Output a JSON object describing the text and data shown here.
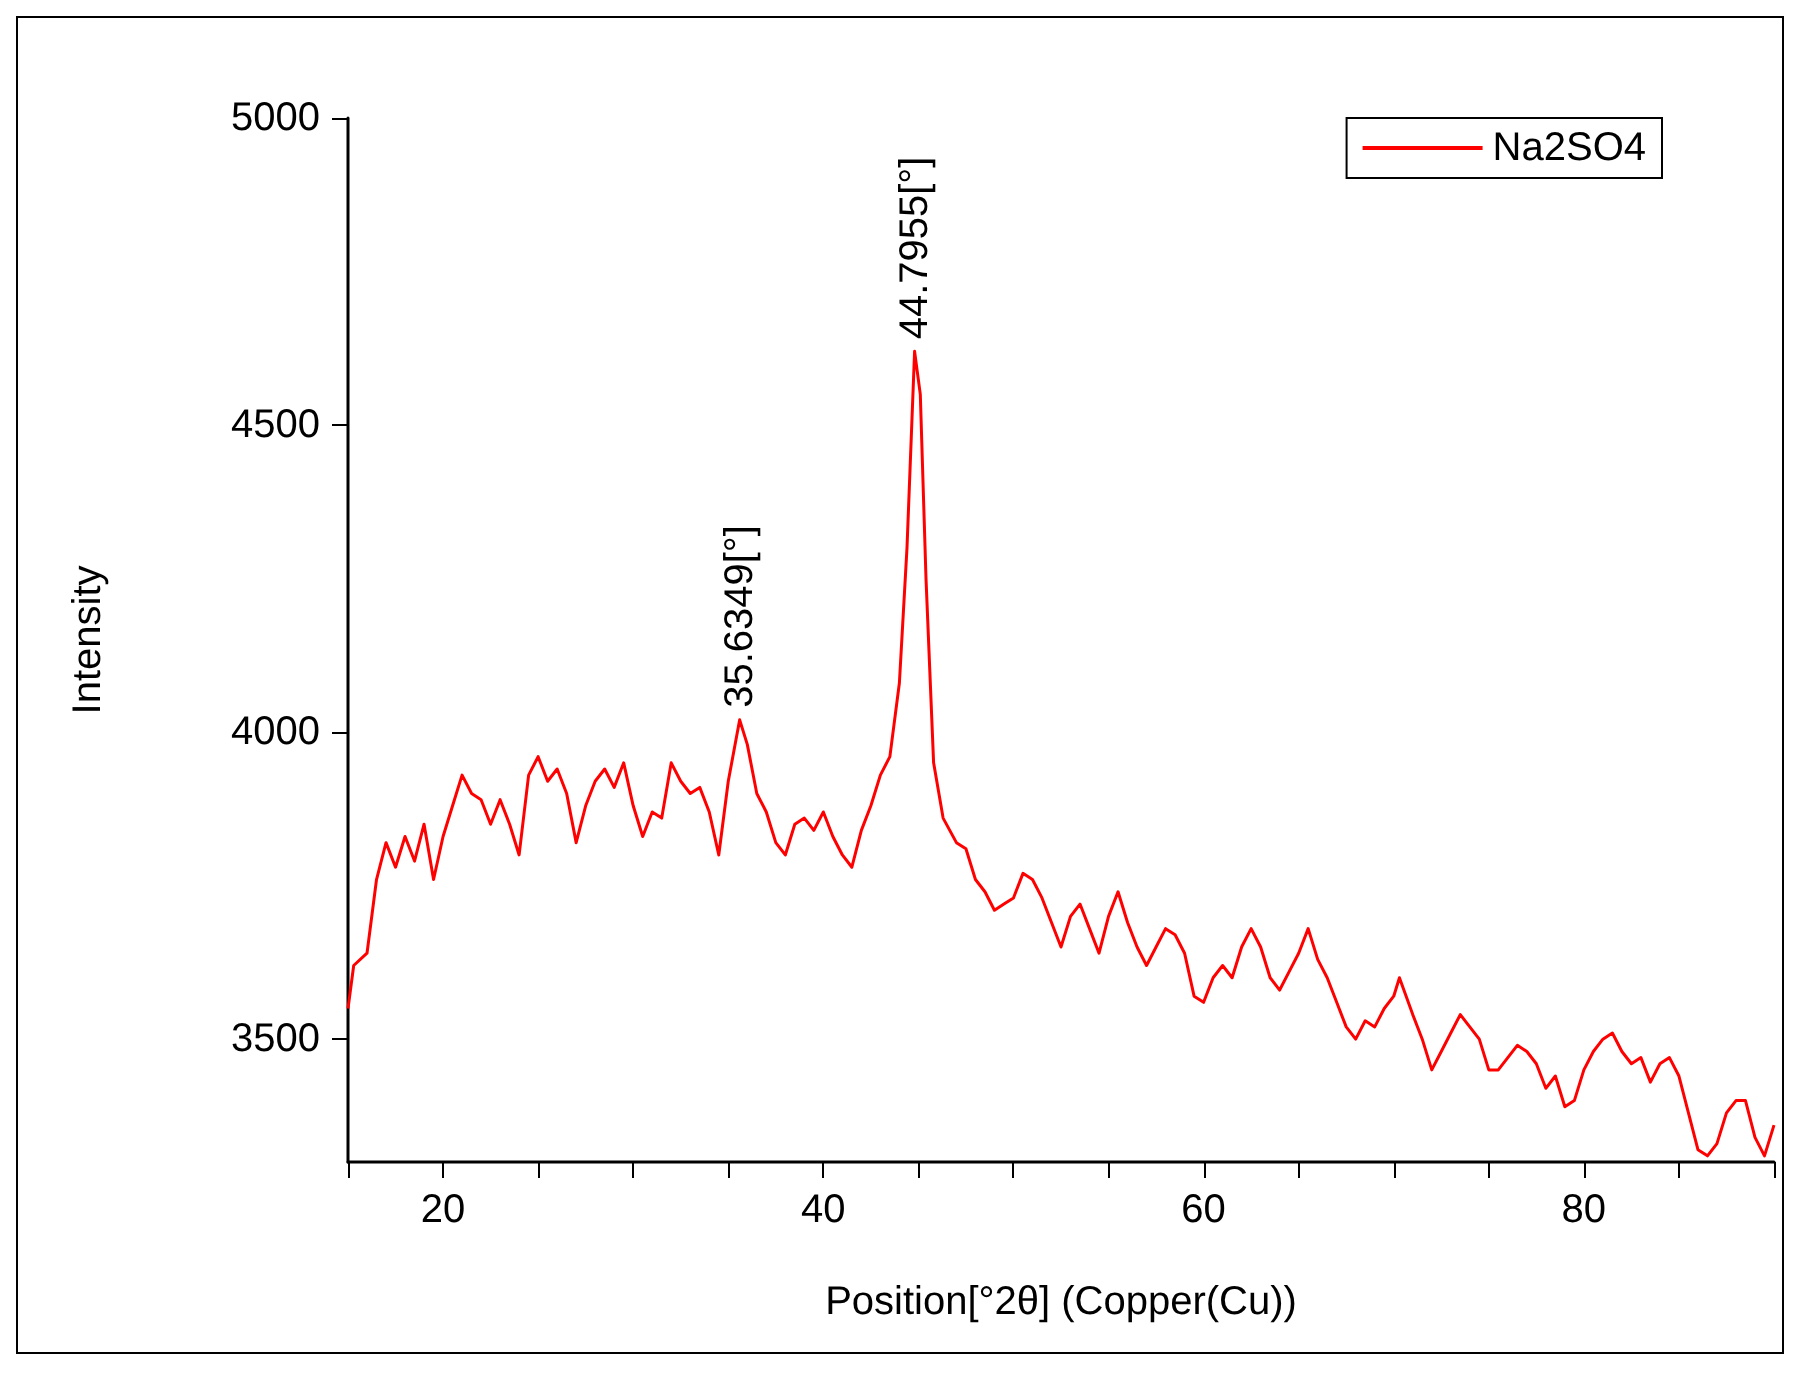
{
  "chart_data": {
    "type": "line",
    "xlabel": "Position[°2θ] (Copper(Cu))",
    "ylabel": "Intensity",
    "xlim": [
      15,
      90
    ],
    "ylim": [
      3300,
      5000
    ],
    "xticks": [
      {
        "value": 15,
        "label": null
      },
      20,
      {
        "value": 25,
        "label": null
      },
      {
        "value": 30,
        "label": null
      },
      {
        "value": 35,
        "label": null
      },
      40,
      {
        "value": 45,
        "label": null
      },
      {
        "value": 50,
        "label": null
      },
      {
        "value": 55,
        "label": null
      },
      60,
      {
        "value": 65,
        "label": null
      },
      {
        "value": 70,
        "label": null
      },
      {
        "value": 75,
        "label": null
      },
      80,
      {
        "value": 85,
        "label": null
      },
      {
        "value": 90,
        "label": null
      }
    ],
    "yticks": [
      3500,
      4000,
      4500,
      5000
    ],
    "grid": false,
    "legend": "top right",
    "marker": "none",
    "line_style": "solid",
    "annotations": [
      {
        "text": "35.6349[°]",
        "x": 35.6349,
        "y": 4020
      },
      {
        "text": "44.7955[°]",
        "x": 44.7955,
        "y": 4620
      }
    ],
    "series": [
      {
        "name": "Na2SO4",
        "color": "#ff0000",
        "x": [
          15,
          15.3,
          16,
          16.5,
          17,
          17.5,
          18,
          18.5,
          19,
          19.5,
          20,
          20.5,
          21,
          21.5,
          22,
          22.5,
          23,
          23.5,
          24,
          24.5,
          25,
          25.5,
          26,
          26.5,
          27,
          27.5,
          28,
          28.5,
          29,
          29.5,
          30,
          30.5,
          31,
          31.5,
          32,
          32.5,
          33,
          33.5,
          34,
          34.5,
          35,
          35.6,
          36,
          36.5,
          37,
          37.5,
          38,
          38.5,
          39,
          39.5,
          40,
          40.5,
          41,
          41.5,
          42,
          42.5,
          43,
          43.5,
          44,
          44.4,
          44.8,
          45.1,
          45.4,
          45.8,
          46.3,
          47,
          47.5,
          48,
          48.5,
          49,
          49.5,
          50,
          50.5,
          51,
          51.5,
          52,
          52.5,
          53,
          53.5,
          54,
          54.5,
          55,
          55.5,
          56,
          56.5,
          57,
          57.5,
          58,
          58.5,
          59,
          59.5,
          60,
          60.5,
          61,
          61.5,
          62,
          62.5,
          63,
          63.5,
          64,
          64.5,
          65,
          65.5,
          66,
          66.5,
          67,
          67.5,
          68,
          68.5,
          69,
          69.5,
          70,
          70.3,
          71,
          71.5,
          72,
          72.5,
          73,
          73.5,
          74,
          74.5,
          75,
          75.5,
          76,
          76.5,
          77,
          77.5,
          78,
          78.5,
          79,
          79.5,
          80,
          80.5,
          81,
          81.5,
          82,
          82.5,
          83,
          83.5,
          84,
          84.5,
          85,
          85.5,
          86,
          86.5,
          87,
          87.5,
          88,
          88.5,
          89,
          89.5,
          90
        ],
        "values": [
          3550,
          3620,
          3640,
          3760,
          3820,
          3780,
          3830,
          3790,
          3850,
          3760,
          3830,
          3880,
          3930,
          3900,
          3890,
          3850,
          3890,
          3850,
          3800,
          3930,
          3960,
          3920,
          3940,
          3900,
          3820,
          3880,
          3920,
          3940,
          3910,
          3950,
          3880,
          3830,
          3870,
          3860,
          3950,
          3920,
          3900,
          3910,
          3870,
          3800,
          3920,
          4020,
          3980,
          3900,
          3870,
          3820,
          3800,
          3850,
          3860,
          3840,
          3870,
          3830,
          3800,
          3780,
          3840,
          3880,
          3930,
          3960,
          4080,
          4300,
          4620,
          4550,
          4250,
          3950,
          3860,
          3820,
          3810,
          3760,
          3740,
          3710,
          3720,
          3730,
          3770,
          3760,
          3730,
          3690,
          3650,
          3700,
          3720,
          3680,
          3640,
          3700,
          3740,
          3690,
          3650,
          3620,
          3650,
          3680,
          3670,
          3640,
          3570,
          3560,
          3600,
          3620,
          3600,
          3650,
          3680,
          3650,
          3600,
          3580,
          3610,
          3640,
          3680,
          3630,
          3600,
          3560,
          3520,
          3500,
          3530,
          3520,
          3550,
          3570,
          3600,
          3540,
          3500,
          3450,
          3480,
          3510,
          3540,
          3520,
          3500,
          3450,
          3450,
          3470,
          3490,
          3480,
          3460,
          3420,
          3440,
          3390,
          3400,
          3450,
          3480,
          3500,
          3510,
          3480,
          3460,
          3470,
          3430,
          3460,
          3470,
          3440,
          3380,
          3320,
          3310,
          3330,
          3380,
          3400,
          3400,
          3340,
          3310,
          3360
        ]
      }
    ]
  }
}
